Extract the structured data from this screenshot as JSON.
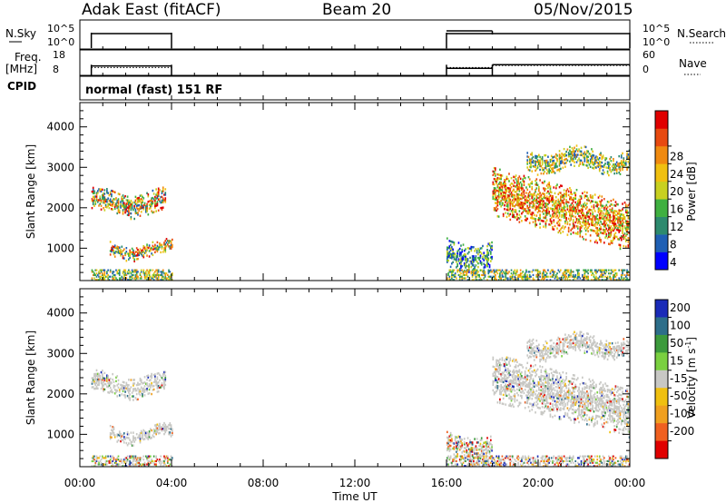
{
  "header": {
    "station": "Adak East (fitACF)",
    "beam": "Beam 20",
    "date": "05/Nov/2015"
  },
  "mode_text": "normal (fast) 151 RF",
  "left_labels": {
    "nsky": "N.Sky",
    "freq_line1": "Freq.",
    "freq_line2": "[MHz]",
    "cpid": "CPID"
  },
  "right_labels": {
    "nsearch": "N.Search",
    "nave": "Nave"
  },
  "x_axis": {
    "title": "Time UT",
    "ticks": [
      "00:00",
      "04:00",
      "08:00",
      "12:00",
      "16:00",
      "20:00",
      "00:00"
    ],
    "tick_hours": [
      0,
      4,
      8,
      12,
      16,
      20,
      24
    ]
  },
  "colorbars": {
    "power": {
      "label": "Power [dB]",
      "ticks": [
        "4",
        "8",
        "12",
        "16",
        "20",
        "24",
        "28"
      ],
      "colors": [
        "#0000ff",
        "#1f5fb4",
        "#2d8a6e",
        "#3fb040",
        "#c8d020",
        "#f0c010",
        "#f08a10",
        "#e84a10",
        "#e00000"
      ]
    },
    "velocity": {
      "label_main": "Velocity [m s",
      "label_sup": "-1",
      "label_end": "]",
      "ticks": [
        "200",
        "100",
        "50",
        "15",
        "-15",
        "-50",
        "-100",
        "-200"
      ],
      "colors": [
        "#1a2bb8",
        "#2d6e8a",
        "#3c9a3c",
        "#7ad040",
        "#c8c8c4",
        "#f0c010",
        "#f0a020",
        "#f06020",
        "#e00000"
      ]
    }
  },
  "chart_data": [
    {
      "type": "heatmap",
      "title": "Power",
      "ylabel": "Slant Range [km]",
      "xlabel": "Time UT",
      "ylim": [
        200,
        4600
      ],
      "xlim": [
        0,
        24
      ],
      "y_ticks": [
        1000,
        2000,
        3000,
        4000
      ],
      "regions": [
        {
          "t": [
            0.5,
            3.7
          ],
          "range_center": 2100,
          "range_width": 550,
          "level": "mixed-high"
        },
        {
          "t": [
            1.3,
            4.0
          ],
          "range_center": 950,
          "range_width": 350,
          "level": "mixed-high"
        },
        {
          "t": [
            16.0,
            18.0
          ],
          "range_center": 800,
          "range_width": 700,
          "level": "low"
        },
        {
          "t": [
            18.0,
            24.0
          ],
          "range_center": 1900,
          "range_width": 1200,
          "level": "high"
        },
        {
          "t": [
            19.5,
            24.0
          ],
          "range_center": 3150,
          "range_width": 500,
          "level": "mixed"
        }
      ]
    },
    {
      "type": "heatmap",
      "title": "Velocity",
      "ylabel": "Slant Range [km]",
      "xlabel": "Time UT",
      "ylim": [
        200,
        4600
      ],
      "xlim": [
        0,
        24
      ],
      "y_ticks": [
        1000,
        2000,
        3000,
        4000
      ],
      "regions": [
        {
          "t": [
            0.5,
            3.7
          ],
          "range_center": 2200,
          "range_width": 500,
          "level": "ground"
        },
        {
          "t": [
            1.3,
            4.0
          ],
          "range_center": 1000,
          "range_width": 350,
          "level": "ground"
        },
        {
          "t": [
            16.0,
            18.0
          ],
          "range_center": 700,
          "range_width": 600,
          "level": "mixed"
        },
        {
          "t": [
            18.0,
            24.0
          ],
          "range_center": 1900,
          "range_width": 1200,
          "level": "ground"
        },
        {
          "t": [
            19.5,
            24.0
          ],
          "range_center": 3150,
          "range_width": 500,
          "level": "ground"
        }
      ]
    },
    {
      "type": "line",
      "title": "N.Sky / N.Search",
      "left_ticks": [
        "10^5",
        "10^0"
      ],
      "right_ticks": [
        "10^5",
        "10^0"
      ],
      "segments": [
        [
          0.5,
          4.0
        ],
        [
          16.0,
          24.0
        ]
      ]
    },
    {
      "type": "line",
      "title": "Freq / Nave",
      "left_ticks": [
        "18",
        "8"
      ],
      "right_ticks": [
        "60",
        "0"
      ],
      "freq_mhz": [
        [
          0.5,
          4.0,
          12
        ],
        [
          16.0,
          18.0,
          11
        ],
        [
          18.0,
          24.0,
          12.5
        ]
      ],
      "nave": [
        [
          0.5,
          4.0,
          20
        ],
        [
          16.0,
          18.0,
          20
        ],
        [
          18.0,
          24.0,
          25
        ]
      ]
    }
  ]
}
